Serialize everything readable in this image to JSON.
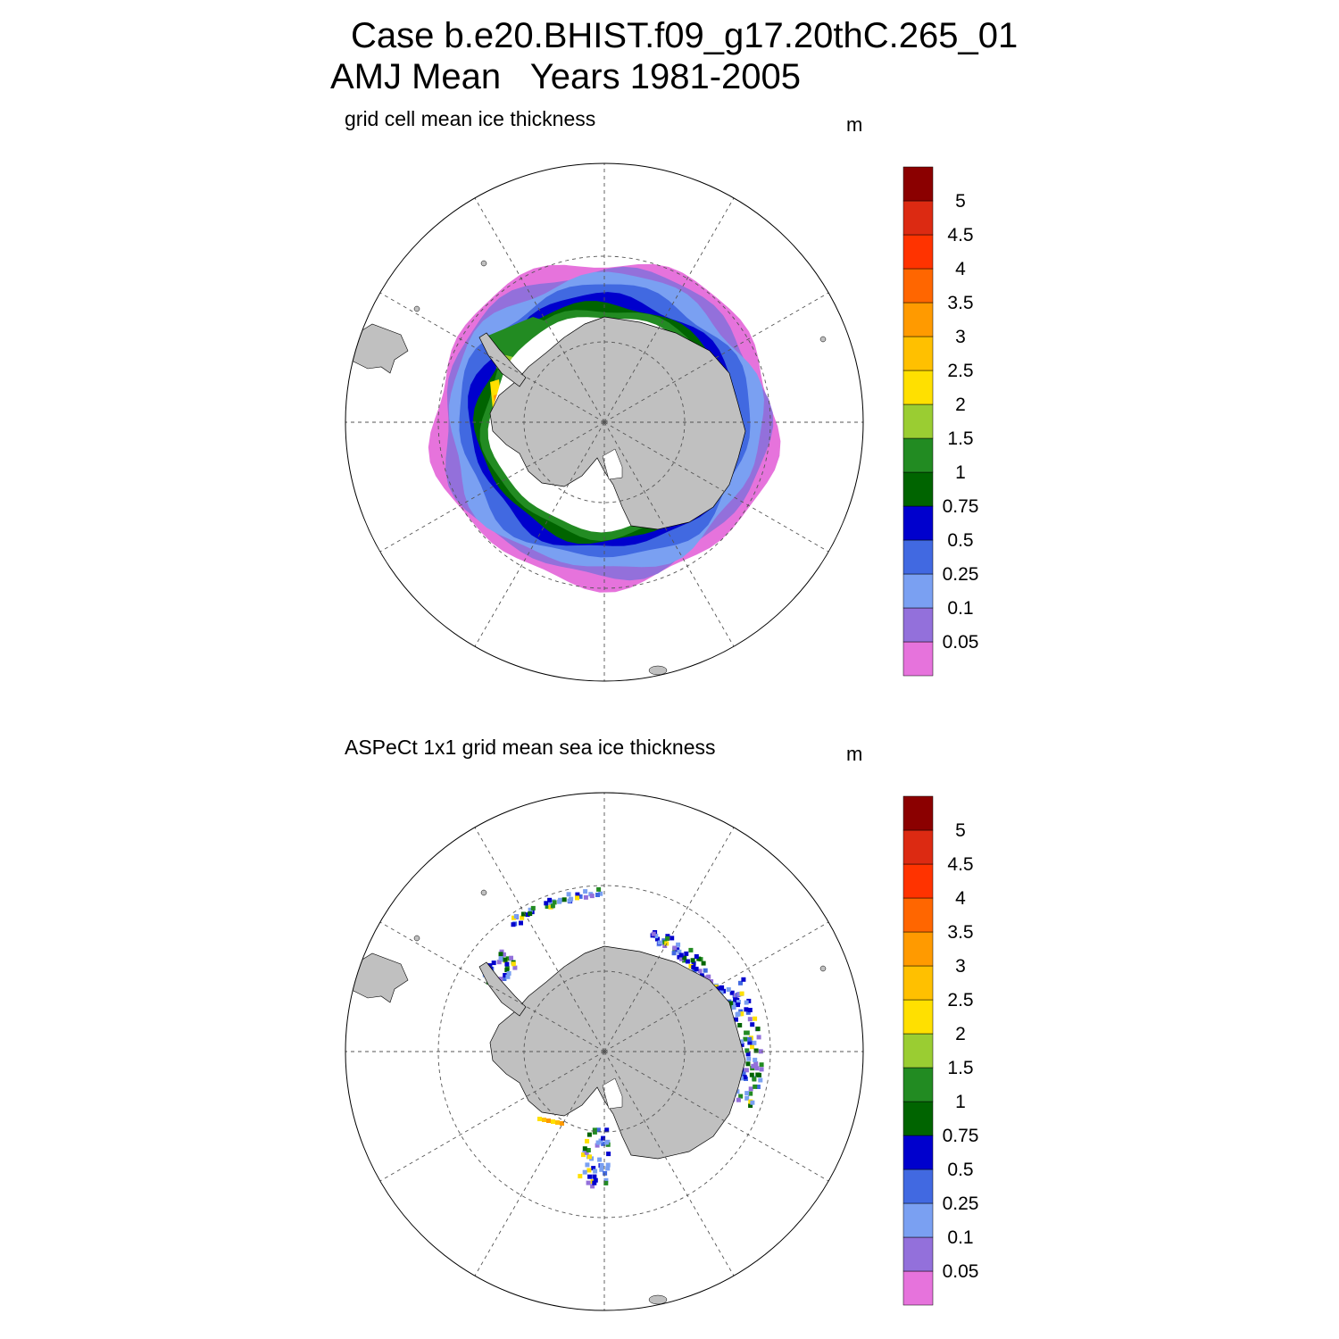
{
  "header": {
    "case_line": "Case b.e20.BHIST.f09_g17.20thC.265_01",
    "period_line": "AMJ Mean   Years 1981-2005"
  },
  "panels": [
    {
      "title": "grid cell mean ice thickness",
      "units": "m"
    },
    {
      "title": "ASPeCt 1x1 grid mean sea ice thickness",
      "units": "m"
    }
  ],
  "colorbar": {
    "levels": [
      "0.05",
      "0.1",
      "0.25",
      "0.5",
      "0.75",
      "1",
      "1.5",
      "2",
      "2.5",
      "3",
      "3.5",
      "4",
      "4.5",
      "5"
    ],
    "colors": [
      "#e673dc",
      "#9370db",
      "#7aa0f2",
      "#4169e1",
      "#0000cd",
      "#006400",
      "#228b22",
      "#9acd32",
      "#ffe000",
      "#ffc000",
      "#ff9a00",
      "#ff6600",
      "#ff3300",
      "#dc2a12",
      "#8b0000"
    ]
  },
  "map_colors": {
    "land": "#c0c0c0",
    "grid": "#555555"
  }
}
